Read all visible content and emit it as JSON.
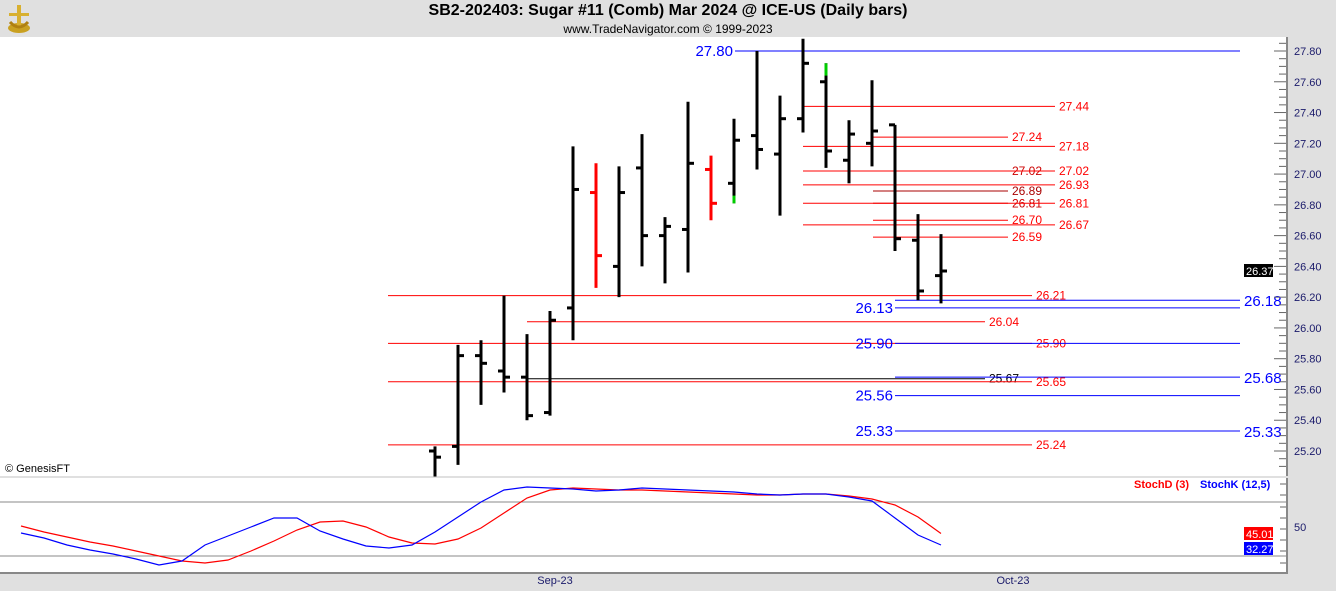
{
  "header": {
    "title": "SB2-202403:  Sugar #11 (Comb) Mar 2024 @ ICE-US  (Daily bars)",
    "subtitle": "www.TradeNavigator.com © 1999-2023"
  },
  "copyright": "© GenesisFT",
  "chart_data": [
    {
      "type": "ohlc",
      "ylim": [
        25.1,
        27.9
      ],
      "y_ticks": [
        "27.80",
        "27.60",
        "27.40",
        "27.20",
        "27.00",
        "26.80",
        "26.60",
        "26.40",
        "26.20",
        "26.00",
        "25.80",
        "25.60",
        "25.40",
        "25.20"
      ],
      "last_price": "26.37",
      "x_ticks": [
        "Sep-23",
        "Oct-23"
      ],
      "bars": [
        {
          "o": 25.2,
          "h": 25.23,
          "l": 25.04,
          "c": 25.16,
          "color": "#000000"
        },
        {
          "o": 25.23,
          "h": 25.89,
          "l": 25.11,
          "c": 25.82,
          "color": "#000000"
        },
        {
          "o": 25.82,
          "h": 25.92,
          "l": 25.5,
          "c": 25.77,
          "color": "#000000"
        },
        {
          "o": 25.72,
          "h": 26.21,
          "l": 25.58,
          "c": 25.68,
          "color": "#000000"
        },
        {
          "o": 25.68,
          "h": 25.96,
          "l": 25.4,
          "c": 25.43,
          "color": "#000000"
        },
        {
          "o": 25.45,
          "h": 26.11,
          "l": 25.43,
          "c": 26.05,
          "color": "#000000"
        },
        {
          "o": 26.13,
          "h": 27.18,
          "l": 25.92,
          "c": 26.9,
          "color": "#000000"
        },
        {
          "o": 26.88,
          "h": 27.07,
          "l": 26.26,
          "c": 26.47,
          "color": "#ff0000"
        },
        {
          "o": 26.4,
          "h": 27.05,
          "l": 26.2,
          "c": 26.88,
          "color": "#000000"
        },
        {
          "o": 27.04,
          "h": 27.26,
          "l": 26.4,
          "c": 26.6,
          "color": "#000000"
        },
        {
          "o": 26.6,
          "h": 26.72,
          "l": 26.29,
          "c": 26.66,
          "color": "#000000"
        },
        {
          "o": 26.64,
          "h": 27.47,
          "l": 26.36,
          "c": 27.07,
          "color": "#000000"
        },
        {
          "o": 27.03,
          "h": 27.12,
          "l": 26.7,
          "c": 26.81,
          "color": "#ff0000"
        },
        {
          "o": 26.94,
          "h": 27.36,
          "l": 26.81,
          "c": 27.22,
          "color": "#000000",
          "accent": {
            "from": 26.81,
            "to": 26.86,
            "color": "#00cc00"
          }
        },
        {
          "o": 27.25,
          "h": 27.8,
          "l": 27.03,
          "c": 27.16,
          "color": "#000000"
        },
        {
          "o": 27.13,
          "h": 27.51,
          "l": 26.73,
          "c": 27.36,
          "color": "#000000"
        },
        {
          "o": 27.36,
          "h": 27.88,
          "l": 27.27,
          "c": 27.72,
          "color": "#000000"
        },
        {
          "o": 27.6,
          "h": 27.72,
          "l": 27.04,
          "c": 27.15,
          "color": "#000000",
          "accent": {
            "from": 27.64,
            "to": 27.72,
            "color": "#00cc00"
          }
        },
        {
          "o": 27.09,
          "h": 27.35,
          "l": 26.94,
          "c": 27.26,
          "color": "#000000"
        },
        {
          "o": 27.2,
          "h": 27.61,
          "l": 27.05,
          "c": 27.28,
          "color": "#000000"
        },
        {
          "o": 27.32,
          "h": 27.32,
          "l": 26.5,
          "c": 26.58,
          "color": "#000000"
        },
        {
          "o": 26.57,
          "h": 26.74,
          "l": 26.18,
          "c": 26.24,
          "color": "#000000"
        },
        {
          "o": 26.34,
          "h": 26.61,
          "l": 26.16,
          "c": 26.37,
          "color": "#000000"
        }
      ],
      "levels": [
        {
          "value": "27.80",
          "color": "#0000ff"
        },
        {
          "value": "27.44",
          "color": "#ff0000"
        },
        {
          "value": "27.24",
          "color": "#ff0000"
        },
        {
          "value": "27.18",
          "color": "#ff0000"
        },
        {
          "value": "27.02",
          "color": "#cc0000"
        },
        {
          "value": "27.02",
          "color": "#ff0000"
        },
        {
          "value": "26.93",
          "color": "#ff0000"
        },
        {
          "value": "26.89",
          "color": "#aa0000"
        },
        {
          "value": "26.81",
          "color": "#cc0000"
        },
        {
          "value": "26.81",
          "color": "#ff0000"
        },
        {
          "value": "26.70",
          "color": "#ff0000"
        },
        {
          "value": "26.67",
          "color": "#ff0000"
        },
        {
          "value": "26.59",
          "color": "#ff0000"
        },
        {
          "value": "26.21",
          "color": "#ff0000"
        },
        {
          "value": "26.18",
          "color": "#0000ff"
        },
        {
          "value": "26.13",
          "color": "#0000ff"
        },
        {
          "value": "26.04",
          "color": "#ff0000"
        },
        {
          "value": "25.90",
          "color": "#ff0000"
        },
        {
          "value": "25.90",
          "color": "#0000ff"
        },
        {
          "value": "25.67",
          "color": "#000000"
        },
        {
          "value": "25.68",
          "color": "#0000ff"
        },
        {
          "value": "25.65",
          "color": "#ff0000"
        },
        {
          "value": "25.56",
          "color": "#0000ff"
        },
        {
          "value": "25.33",
          "color": "#0000ff"
        },
        {
          "value": "25.24",
          "color": "#ff0000"
        }
      ]
    },
    {
      "type": "line",
      "ylim": [
        0,
        100
      ],
      "y_ticks": [
        "50"
      ],
      "reference_lines": [
        20,
        80
      ],
      "series": [
        {
          "name": "StochD (3)",
          "color": "#ff0000",
          "last": "45.01",
          "values": [
            53.3,
            46.7,
            41.1,
            35.6,
            31.1,
            25.6,
            20,
            14.4,
            12.2,
            15.6,
            25.6,
            36.7,
            48.9,
            57.8,
            58.9,
            52.2,
            41.1,
            34.4,
            33.3,
            38.9,
            51.1,
            67.8,
            84.4,
            93.3,
            95.6,
            94.4,
            93.3,
            93.3,
            92.2,
            91.1,
            90,
            88.9,
            87.8,
            87.8,
            88.9,
            88.9,
            86.7,
            83.3,
            76.7,
            63.3,
            45.01
          ]
        },
        {
          "name": "StochK (12,5)",
          "color": "#0000ff",
          "last": "32.27",
          "values": [
            45.6,
            40,
            32.2,
            26.7,
            22.2,
            16.7,
            10,
            14.4,
            32.2,
            42.2,
            52.2,
            62.2,
            62.2,
            47.8,
            38.9,
            31.1,
            28.9,
            32.2,
            46.7,
            63.3,
            80,
            93.3,
            96.7,
            95.6,
            94.4,
            92.2,
            93.3,
            95.6,
            94.4,
            93.3,
            92.2,
            91.1,
            88.9,
            87.8,
            88.9,
            88.9,
            85.6,
            81.1,
            62.2,
            43.3,
            32.27
          ]
        }
      ]
    }
  ]
}
